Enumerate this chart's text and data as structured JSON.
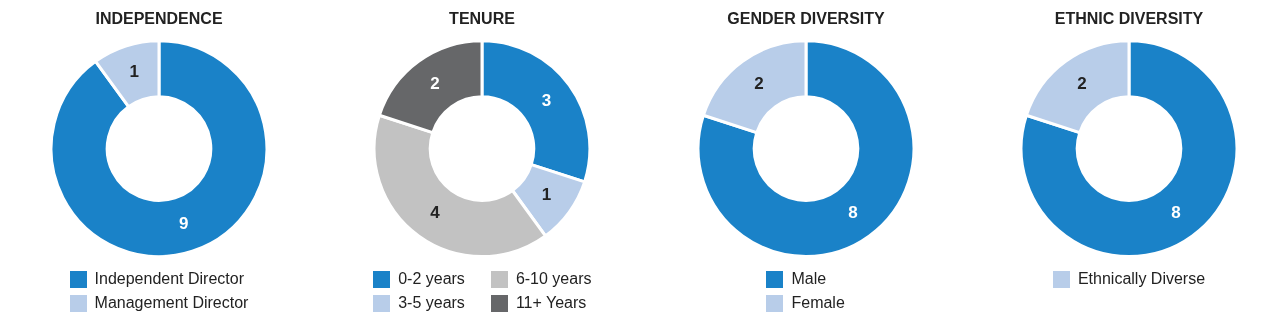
{
  "chart_data": [
    {
      "type": "donut",
      "title": "INDEPENDENCE",
      "categories": [
        "Independent Director",
        "Management Director"
      ],
      "values": [
        9,
        1
      ],
      "colors": [
        "#1a82c8",
        "#b8cde9"
      ],
      "data_labels": true,
      "legend": "bottom"
    },
    {
      "type": "donut",
      "title": "TENURE",
      "categories": [
        "0-2 years",
        "3-5 years",
        "6-10 years",
        "11+ Years"
      ],
      "values": [
        3,
        1,
        4,
        2
      ],
      "colors": [
        "#1a82c8",
        "#b8cde9",
        "#c2c2c2",
        "#666769"
      ],
      "data_labels": true,
      "legend": "bottom"
    },
    {
      "type": "donut",
      "title": "GENDER DIVERSITY",
      "categories": [
        "Male",
        "Female"
      ],
      "values": [
        8,
        2
      ],
      "colors": [
        "#1a82c8",
        "#b8cde9"
      ],
      "data_labels": true,
      "legend": "bottom"
    },
    {
      "type": "donut",
      "title": "ETHNIC DIVERSITY",
      "categories": [
        null,
        "Ethnically Diverse"
      ],
      "values": [
        8,
        2
      ],
      "colors": [
        "#1a82c8",
        "#b8cde9"
      ],
      "data_labels": true,
      "legend": "bottom"
    }
  ]
}
